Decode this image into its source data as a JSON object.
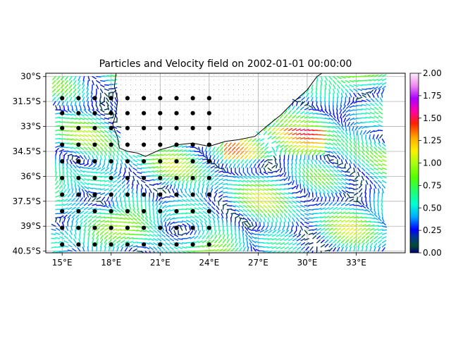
{
  "chart_data": {
    "type": "quiver",
    "title": "Particles and Velocity field on 2002-01-01 00:00:00",
    "xlabel": "",
    "ylabel": "",
    "x_range": [
      14.0,
      36.0
    ],
    "y_range": [
      -40.6,
      -29.8
    ],
    "xticks": [
      {
        "value": 15,
        "label": "15°E"
      },
      {
        "value": 18,
        "label": "18°E"
      },
      {
        "value": 21,
        "label": "21°E"
      },
      {
        "value": 24,
        "label": "24°E"
      },
      {
        "value": 27,
        "label": "27°E"
      },
      {
        "value": 30,
        "label": "30°E"
      },
      {
        "value": 33,
        "label": "33°E"
      }
    ],
    "yticks": [
      {
        "value": -30.0,
        "label": "30°S"
      },
      {
        "value": -31.5,
        "label": "31.5°S"
      },
      {
        "value": -33.0,
        "label": "33°S"
      },
      {
        "value": -34.5,
        "label": "34.5°S"
      },
      {
        "value": -36.0,
        "label": "36°S"
      },
      {
        "value": -37.5,
        "label": "37.5°S"
      },
      {
        "value": -39.0,
        "label": "39°S"
      },
      {
        "value": -40.5,
        "label": "40.5°S"
      }
    ],
    "grid": true,
    "colorbar": {
      "range": [
        0.0,
        2.0
      ],
      "ticks": [
        "2.00",
        "1.75",
        "1.50",
        "1.25",
        "1.00",
        "0.75",
        "0.50",
        "0.25",
        "0.00"
      ],
      "colormap": "gist_ncar"
    },
    "particles": {
      "color": "#000000",
      "lon": [
        15,
        16,
        17,
        18,
        19,
        20,
        21,
        22,
        23,
        24
      ],
      "lat": [
        -31.3,
        -32.2,
        -33.1,
        -34.1,
        -35.1,
        -36.1,
        -37.1,
        -38.1,
        -39.1,
        -40.1
      ]
    },
    "coastline": [
      [
        18.3,
        -29.8
      ],
      [
        18.2,
        -30.6
      ],
      [
        18.4,
        -31.4
      ],
      [
        18.3,
        -32.2
      ],
      [
        18.1,
        -32.9
      ],
      [
        18.4,
        -33.7
      ],
      [
        18.5,
        -34.3
      ],
      [
        19.0,
        -34.5
      ],
      [
        19.6,
        -34.6
      ],
      [
        20.1,
        -34.8
      ],
      [
        21.0,
        -34.4
      ],
      [
        22.1,
        -34.1
      ],
      [
        23.0,
        -34.0
      ],
      [
        24.0,
        -34.2
      ],
      [
        25.0,
        -33.9
      ],
      [
        25.8,
        -33.8
      ],
      [
        26.8,
        -33.6
      ],
      [
        27.5,
        -33.0
      ],
      [
        28.4,
        -32.3
      ],
      [
        29.2,
        -31.5
      ],
      [
        30.0,
        -30.8
      ],
      [
        30.6,
        -30.0
      ],
      [
        30.9,
        -29.8
      ]
    ]
  }
}
